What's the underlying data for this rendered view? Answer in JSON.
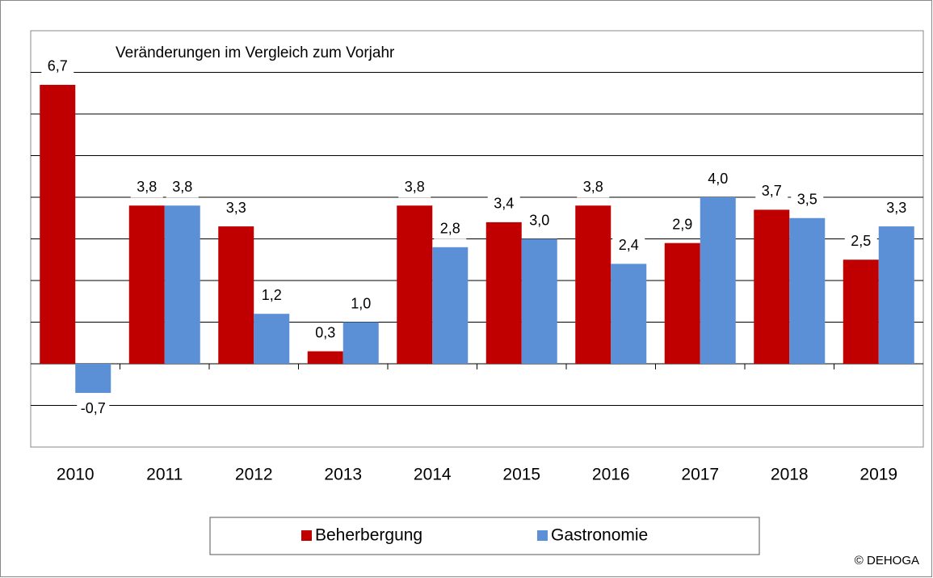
{
  "chart_data": {
    "type": "bar",
    "subtitle": "Veränderungen im Vergleich zum Vorjahr",
    "categories": [
      "2010",
      "2011",
      "2012",
      "2013",
      "2014",
      "2015",
      "2016",
      "2017",
      "2018",
      "2019"
    ],
    "series": [
      {
        "name": "Beherbergung",
        "color": "#c00000",
        "values": [
          6.7,
          3.8,
          3.3,
          0.3,
          3.8,
          3.4,
          3.8,
          2.9,
          3.7,
          2.5
        ],
        "value_labels": [
          "6,7",
          "3,8",
          "3,3",
          "0,3",
          "3,8",
          "3,4",
          "3,8",
          "2,9",
          "3,7",
          "2,5"
        ]
      },
      {
        "name": "Gastronomie",
        "color": "#5b8fd6",
        "values": [
          -0.7,
          3.8,
          1.2,
          1.0,
          2.8,
          3.0,
          2.4,
          4.0,
          3.5,
          3.3
        ],
        "value_labels": [
          "-0,7",
          "3,8",
          "1,2",
          "1,0",
          "2,8",
          "3,0",
          "2,4",
          "4,0",
          "3,5",
          "3,3"
        ]
      }
    ],
    "ylim": [
      -2,
      8
    ],
    "yticks": [
      -2,
      -1,
      0,
      1,
      2,
      3,
      4,
      5,
      6,
      7,
      8
    ],
    "grid": true,
    "legend": "bottom",
    "source": "© DEHOGA"
  }
}
